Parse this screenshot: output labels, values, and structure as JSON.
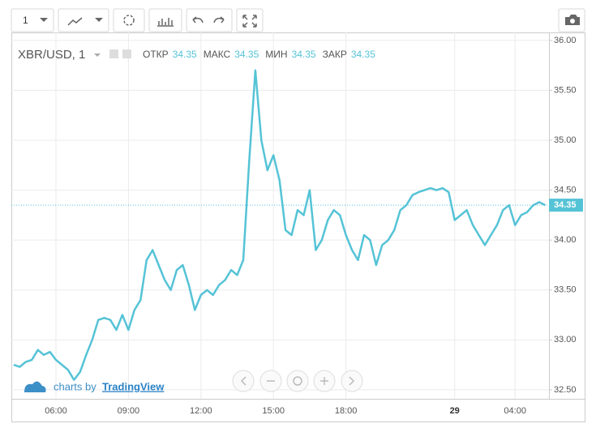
{
  "toolbar": {
    "interval": "1"
  },
  "chart_data": {
    "type": "line",
    "symbol": "XBR/USD, 1",
    "ohlc": {
      "labels": [
        "ОТКР",
        "МАКС",
        "МИН",
        "ЗАКР"
      ],
      "values": [
        34.35,
        34.35,
        34.35,
        34.35
      ]
    },
    "last_price": 34.35,
    "categories": [
      null,
      null,
      null,
      null,
      null,
      null,
      null,
      "06:00",
      null,
      null,
      null,
      null,
      null,
      null,
      null,
      null,
      null,
      null,
      null,
      "09:00",
      null,
      null,
      null,
      null,
      null,
      null,
      null,
      null,
      null,
      null,
      null,
      "12:00",
      null,
      null,
      null,
      null,
      null,
      null,
      null,
      null,
      null,
      null,
      null,
      "15:00",
      null,
      null,
      null,
      null,
      null,
      null,
      null,
      null,
      null,
      null,
      null,
      "18:00",
      null,
      null,
      null,
      null,
      null,
      null,
      null,
      null,
      null,
      null,
      null,
      null,
      null,
      null,
      null,
      null,
      null,
      "29",
      null,
      null,
      null,
      null,
      null,
      null,
      null,
      null,
      null,
      "04:00",
      null,
      null,
      null,
      null,
      null
    ],
    "series": [
      {
        "name": "XBR/USD",
        "color": "#55c3d6",
        "values": [
          32.75,
          32.73,
          32.78,
          32.8,
          32.9,
          32.85,
          32.88,
          32.8,
          32.75,
          32.7,
          32.6,
          32.68,
          32.85,
          33.0,
          33.2,
          33.22,
          33.2,
          33.1,
          33.25,
          33.1,
          33.3,
          33.4,
          33.8,
          33.9,
          33.75,
          33.6,
          33.5,
          33.7,
          33.75,
          33.55,
          33.3,
          33.45,
          33.5,
          33.45,
          33.55,
          33.6,
          33.7,
          33.65,
          33.8,
          34.8,
          35.7,
          35.0,
          34.7,
          34.85,
          34.6,
          34.1,
          34.05,
          34.3,
          34.25,
          34.5,
          33.9,
          34.0,
          34.2,
          34.3,
          34.25,
          34.05,
          33.9,
          33.8,
          34.05,
          34.0,
          33.75,
          33.95,
          34.0,
          34.1,
          34.3,
          34.35,
          34.45,
          34.48,
          34.5,
          34.52,
          34.5,
          34.52,
          34.48,
          34.2,
          34.25,
          34.3,
          34.15,
          34.05,
          33.95,
          34.05,
          34.15,
          34.3,
          34.35,
          34.15,
          34.25,
          34.28,
          34.35,
          34.38,
          34.35
        ]
      }
    ],
    "ylim": [
      32.41,
      36.08
    ],
    "yticks": [
      {
        "value": 32.5,
        "label": "32.50"
      },
      {
        "value": 33,
        "label": "33.00"
      },
      {
        "value": 33.5,
        "label": "33.50"
      },
      {
        "value": 34,
        "label": "34.00"
      },
      {
        "value": 34.5,
        "label": "34.50"
      },
      {
        "value": 35,
        "label": "35.00"
      },
      {
        "value": 35.5,
        "label": "35.50"
      },
      {
        "value": 36,
        "label": "36.00"
      }
    ],
    "grid": true
  },
  "branding": {
    "prefix": "charts by",
    "name": "TradingView"
  }
}
